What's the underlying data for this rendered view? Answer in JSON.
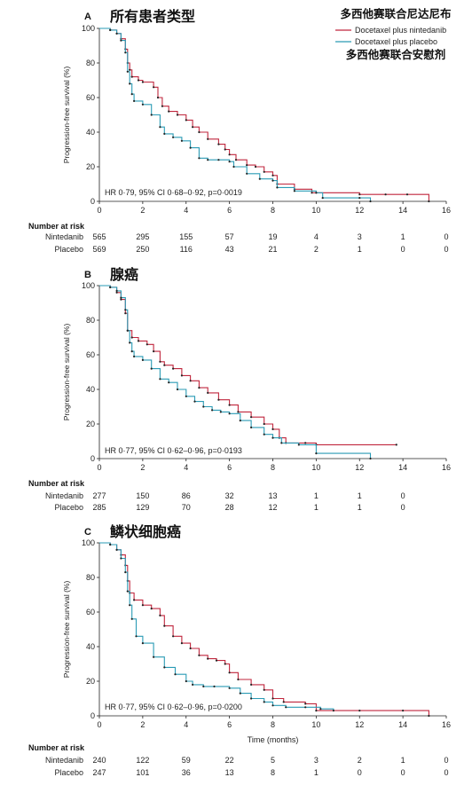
{
  "colors": {
    "nintedanib": "#c0263d",
    "placebo": "#2a9bb5",
    "axis": "#222222"
  },
  "legend": {
    "title_nintedanib": "多西他赛联合尼达尼布",
    "label_nintedanib": "Docetaxel plus nintedanib",
    "label_placebo": "Docetaxel plus placebo",
    "title_placebo": "多西他赛联合安慰剂"
  },
  "risk_header": "Number at risk",
  "x_axis_title": "Time (months)",
  "chart_data": [
    {
      "type": "line",
      "letter": "A",
      "title": "所有患者类型",
      "ylabel": "Progression-free survival (%)",
      "xlim": [
        0,
        16
      ],
      "ylim": [
        0,
        100
      ],
      "xticks": [
        "0",
        "2",
        "4",
        "6",
        "8",
        "10",
        "12",
        "14",
        "16"
      ],
      "yticks": [
        "0",
        "20",
        "40",
        "60",
        "80",
        "100"
      ],
      "annotation": "HR 0·79, 95% CI 0·68–0·92, p=0·0019",
      "series": [
        {
          "name": "Docetaxel plus nintedanib",
          "x": [
            0,
            0.5,
            0.8,
            1.0,
            1.2,
            1.3,
            1.4,
            1.5,
            1.8,
            2.0,
            2.5,
            2.7,
            2.9,
            3.2,
            3.6,
            4.0,
            4.3,
            4.6,
            5.0,
            5.5,
            5.8,
            6.0,
            6.3,
            6.8,
            7.2,
            7.6,
            8.0,
            8.2,
            9.0,
            9.8,
            10.0,
            12.0,
            13.2,
            14.2,
            15.2
          ],
          "y": [
            100,
            99,
            97,
            94,
            88,
            80,
            76,
            72,
            70,
            69,
            66,
            60,
            55,
            52,
            50,
            47,
            43,
            40,
            36,
            33,
            30,
            27,
            24,
            21,
            20,
            17,
            15,
            10,
            7,
            5,
            5,
            4,
            4,
            4,
            0
          ]
        },
        {
          "name": "Docetaxel plus placebo",
          "x": [
            0,
            0.5,
            0.8,
            1.0,
            1.2,
            1.3,
            1.4,
            1.5,
            1.6,
            2.0,
            2.4,
            2.8,
            3.0,
            3.4,
            3.8,
            4.2,
            4.6,
            5.0,
            5.5,
            6.0,
            6.2,
            6.8,
            7.4,
            8.0,
            8.2,
            9.0,
            10.0,
            10.3,
            12.0,
            12.5
          ],
          "y": [
            100,
            99,
            97,
            93,
            86,
            75,
            68,
            62,
            58,
            56,
            50,
            43,
            39,
            37,
            35,
            31,
            25,
            24,
            24,
            23,
            20,
            16,
            13,
            12,
            8,
            6,
            5,
            2,
            2,
            0
          ]
        }
      ],
      "risk": {
        "x": [
          0,
          2,
          4,
          6,
          8,
          10,
          12,
          14,
          16
        ],
        "rows": [
          {
            "label": "Nintedanib",
            "values": [
              "565",
              "295",
              "155",
              "57",
              "19",
              "4",
              "3",
              "1",
              "0"
            ]
          },
          {
            "label": "Placebo",
            "values": [
              "569",
              "250",
              "116",
              "43",
              "21",
              "2",
              "1",
              "0",
              "0"
            ]
          }
        ]
      }
    },
    {
      "type": "line",
      "letter": "B",
      "title": "腺癌",
      "ylabel": "Progression-free survival (%)",
      "xlim": [
        0,
        16
      ],
      "ylim": [
        0,
        100
      ],
      "xticks": [
        "0",
        "2",
        "4",
        "6",
        "8",
        "10",
        "12",
        "14",
        "16"
      ],
      "yticks": [
        "0",
        "20",
        "40",
        "60",
        "80",
        "100"
      ],
      "annotation": "HR 0·77, 95% CI 0·62–0·96, p=0·0193",
      "series": [
        {
          "name": "Docetaxel plus nintedanib",
          "x": [
            0,
            0.5,
            0.8,
            1.0,
            1.2,
            1.3,
            1.5,
            1.8,
            2.2,
            2.5,
            2.8,
            3.0,
            3.4,
            3.8,
            4.2,
            4.6,
            5.0,
            5.5,
            6.0,
            6.4,
            7.0,
            7.6,
            8.0,
            8.3,
            8.6,
            9.5,
            10.0,
            13.7
          ],
          "y": [
            100,
            99,
            96,
            92,
            84,
            74,
            70,
            68,
            66,
            62,
            56,
            54,
            52,
            48,
            45,
            41,
            38,
            34,
            31,
            27,
            24,
            20,
            17,
            12,
            9,
            9,
            8,
            8
          ]
        },
        {
          "name": "Docetaxel plus placebo",
          "x": [
            0,
            0.5,
            0.8,
            1.0,
            1.2,
            1.3,
            1.4,
            1.5,
            1.6,
            2.0,
            2.4,
            2.8,
            3.2,
            3.6,
            4.0,
            4.4,
            4.8,
            5.2,
            5.6,
            6.0,
            6.5,
            7.0,
            7.6,
            8.0,
            8.4,
            9.2,
            10.0,
            12.5
          ],
          "y": [
            100,
            99,
            97,
            93,
            86,
            74,
            67,
            62,
            59,
            57,
            52,
            46,
            44,
            40,
            36,
            33,
            30,
            28,
            27,
            26,
            22,
            18,
            14,
            12,
            9,
            8,
            3,
            0
          ]
        }
      ],
      "risk": {
        "x": [
          0,
          2,
          4,
          6,
          8,
          10,
          12,
          14
        ],
        "rows": [
          {
            "label": "Nintedanib",
            "values": [
              "277",
              "150",
              "86",
              "32",
              "13",
              "1",
              "1",
              "0"
            ]
          },
          {
            "label": "Placebo",
            "values": [
              "285",
              "129",
              "70",
              "28",
              "12",
              "1",
              "1",
              "0"
            ]
          }
        ]
      }
    },
    {
      "type": "line",
      "letter": "C",
      "title": "鳞状细胞癌",
      "ylabel": "Progression-free survival (%)",
      "xlim": [
        0,
        16
      ],
      "ylim": [
        0,
        100
      ],
      "xticks": [
        "0",
        "2",
        "4",
        "6",
        "8",
        "10",
        "12",
        "14",
        "16"
      ],
      "yticks": [
        "0",
        "20",
        "40",
        "60",
        "80",
        "100"
      ],
      "xlabel": "Time (months)",
      "annotation": "HR 0·77, 95% CI 0·62–0·96, p=0·0200",
      "series": [
        {
          "name": "Docetaxel plus nintedanib",
          "x": [
            0,
            0.5,
            0.8,
            1.0,
            1.2,
            1.3,
            1.4,
            1.6,
            2.0,
            2.4,
            2.8,
            3.0,
            3.4,
            3.8,
            4.2,
            4.6,
            5.0,
            5.4,
            5.8,
            6.0,
            6.4,
            7.0,
            7.6,
            8.0,
            8.5,
            9.5,
            10.0,
            12.0,
            14.0,
            15.2
          ],
          "y": [
            100,
            99,
            96,
            93,
            87,
            78,
            71,
            67,
            64,
            62,
            58,
            52,
            46,
            42,
            39,
            35,
            33,
            32,
            30,
            25,
            21,
            18,
            15,
            10,
            8,
            7,
            3,
            3,
            3,
            0
          ]
        },
        {
          "name": "Docetaxel plus placebo",
          "x": [
            0,
            0.5,
            0.8,
            1.0,
            1.2,
            1.3,
            1.4,
            1.5,
            1.7,
            2.0,
            2.5,
            3.0,
            3.5,
            4.0,
            4.3,
            4.8,
            5.3,
            6.0,
            6.5,
            7.0,
            7.6,
            8.0,
            8.6,
            9.5,
            10.2,
            10.8
          ],
          "y": [
            100,
            99,
            96,
            91,
            83,
            72,
            64,
            56,
            46,
            42,
            34,
            28,
            24,
            20,
            18,
            17,
            17,
            16,
            13,
            10,
            8,
            6,
            5,
            5,
            4,
            3
          ]
        }
      ],
      "risk": {
        "x": [
          0,
          2,
          4,
          6,
          8,
          10,
          12,
          14,
          16
        ],
        "rows": [
          {
            "label": "Nintedanib",
            "values": [
              "240",
              "122",
              "59",
              "22",
              "5",
              "3",
              "2",
              "1",
              "0"
            ]
          },
          {
            "label": "Placebo",
            "values": [
              "247",
              "101",
              "36",
              "13",
              "8",
              "1",
              "0",
              "0",
              "0"
            ]
          }
        ]
      }
    }
  ]
}
